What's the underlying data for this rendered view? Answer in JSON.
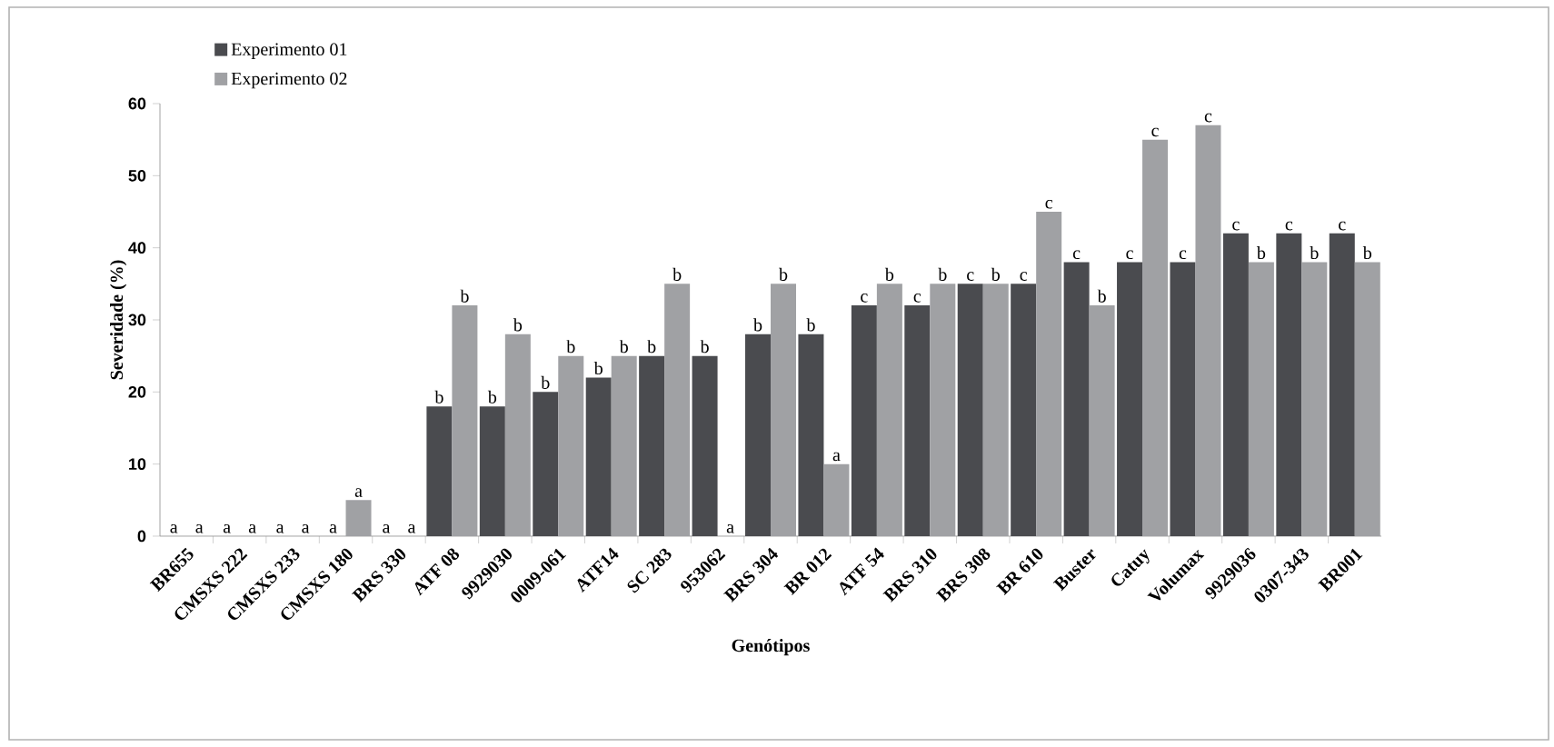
{
  "chart_data": {
    "type": "bar",
    "xlabel": "Genótipos",
    "ylabel": "Severidade (%)",
    "categories": [
      "BR655",
      "CMSXS 222",
      "CMSXS 233",
      "CMSXS 180",
      "BRS 330",
      "ATF 08",
      "9929030",
      "0009-061",
      "ATF14",
      "SC 283",
      "953062",
      "BRS 304",
      "BR 012",
      "ATF 54",
      "BRS 310",
      "BRS 308",
      "BR 610",
      "Buster",
      "Catuy",
      "Volumax",
      "9929036",
      "0307-343",
      "BR001"
    ],
    "series": [
      {
        "name": "Experimento 01",
        "color": "#4a4b4f",
        "values": [
          0,
          0,
          0,
          0,
          0,
          18,
          18,
          20,
          22,
          25,
          25,
          28,
          28,
          32,
          32,
          35,
          35,
          38,
          38,
          38,
          42,
          42,
          42
        ],
        "value_labels": [
          "a",
          "a",
          "a",
          "a",
          "a",
          "b",
          "b",
          "b",
          "b",
          "b",
          "b",
          "b",
          "b",
          "c",
          "c",
          "c",
          "c",
          "c",
          "c",
          "c",
          "c",
          "c",
          "c"
        ]
      },
      {
        "name": "Experimento 02",
        "color": "#a0a1a4",
        "values": [
          0,
          0,
          0,
          5,
          0,
          32,
          28,
          25,
          25,
          35,
          0,
          35,
          10,
          35,
          35,
          35,
          45,
          32,
          55,
          57,
          38,
          38,
          38
        ],
        "value_labels": [
          "a",
          "a",
          "a",
          "a",
          "a",
          "b",
          "b",
          "b",
          "b",
          "b",
          "a",
          "b",
          "a",
          "b",
          "b",
          "b",
          "c",
          "b",
          "c",
          "c",
          "b",
          "b",
          "b"
        ]
      }
    ],
    "ylim": [
      0,
      60
    ],
    "yticks": [
      0,
      10,
      20,
      30,
      40,
      50,
      60
    ],
    "grid": false,
    "legend": "top left"
  }
}
